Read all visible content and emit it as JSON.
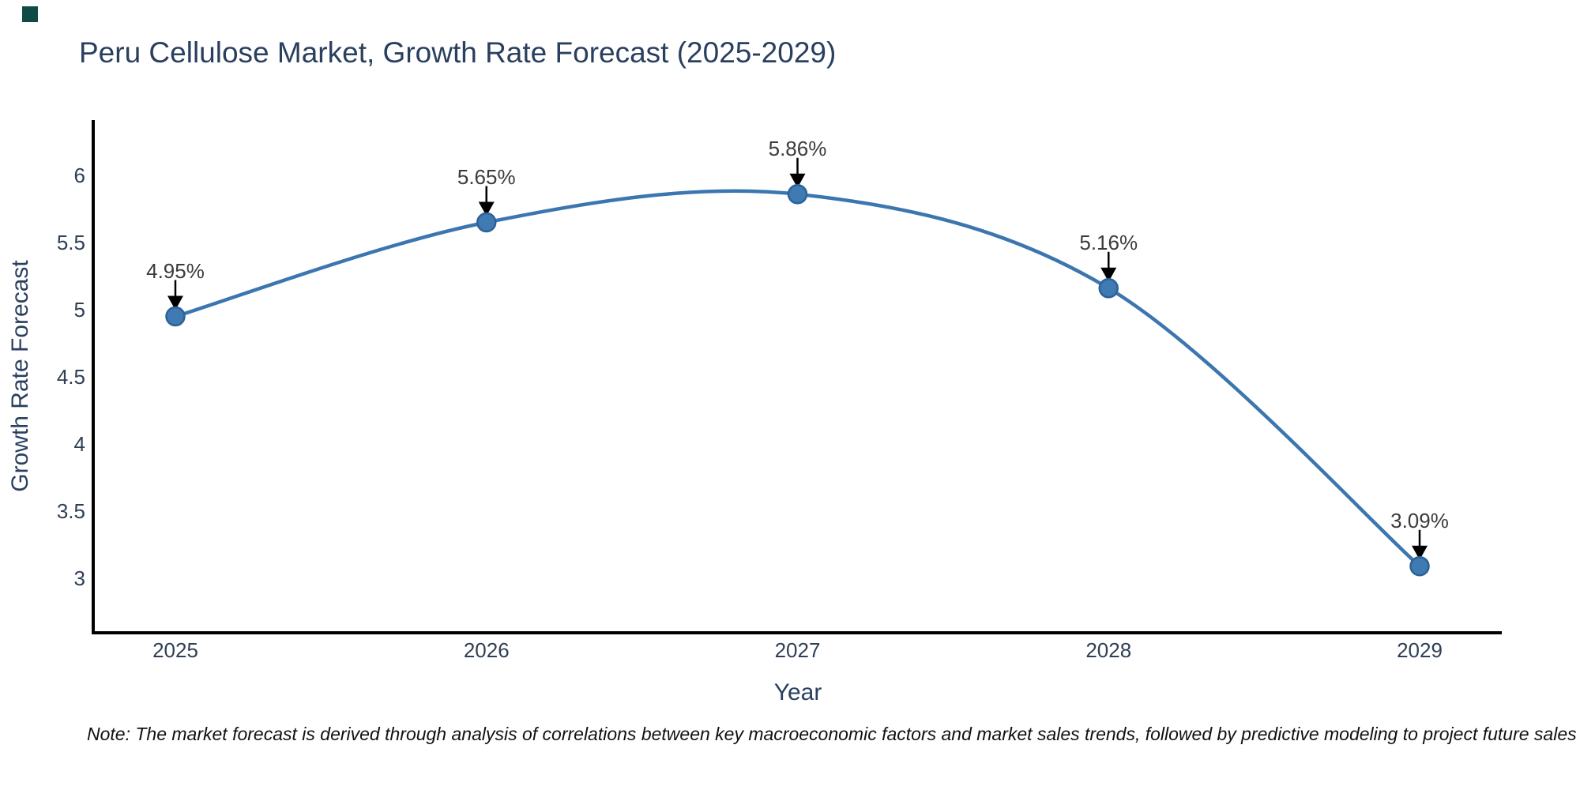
{
  "brand": {
    "logo_color": "#0f4b44"
  },
  "title": "Peru Cellulose Market, Growth Rate Forecast (2025-2029)",
  "note": "Note: The market forecast is derived through analysis of correlations between key macroeconomic factors and market sales trends, followed by predictive modeling to project future sales",
  "chart_data": {
    "type": "line",
    "title": "Peru Cellulose Market, Growth Rate Forecast (2025-2029)",
    "xlabel": "Year",
    "ylabel": "Growth Rate Forecast",
    "x": [
      2025,
      2026,
      2027,
      2028,
      2029
    ],
    "series": [
      {
        "name": "Growth Rate Forecast",
        "values": [
          4.95,
          5.65,
          5.86,
          5.16,
          3.09
        ]
      }
    ],
    "point_labels": [
      "4.95%",
      "5.65%",
      "5.86%",
      "5.16%",
      "3.09%"
    ],
    "xticks": [
      "2025",
      "2026",
      "2027",
      "2028",
      "2029"
    ],
    "yticks": [
      3,
      3.5,
      4,
      4.5,
      5,
      5.5,
      6
    ],
    "ylim": [
      2.6,
      6.41
    ],
    "xlim": [
      2024.74,
      2029.26
    ],
    "line_shape": "spline",
    "grid": false,
    "legend_position": "none",
    "colors": {
      "line": "#3c76af",
      "marker_fill": "#3f7ab3",
      "marker_edge": "#2c6298",
      "axis_line": "#000000",
      "annotation_text": "#3b3b3b",
      "annotation_arrow": "#000000",
      "tick_text": "#2f3f55",
      "title_text": "#2a3f5f"
    }
  }
}
